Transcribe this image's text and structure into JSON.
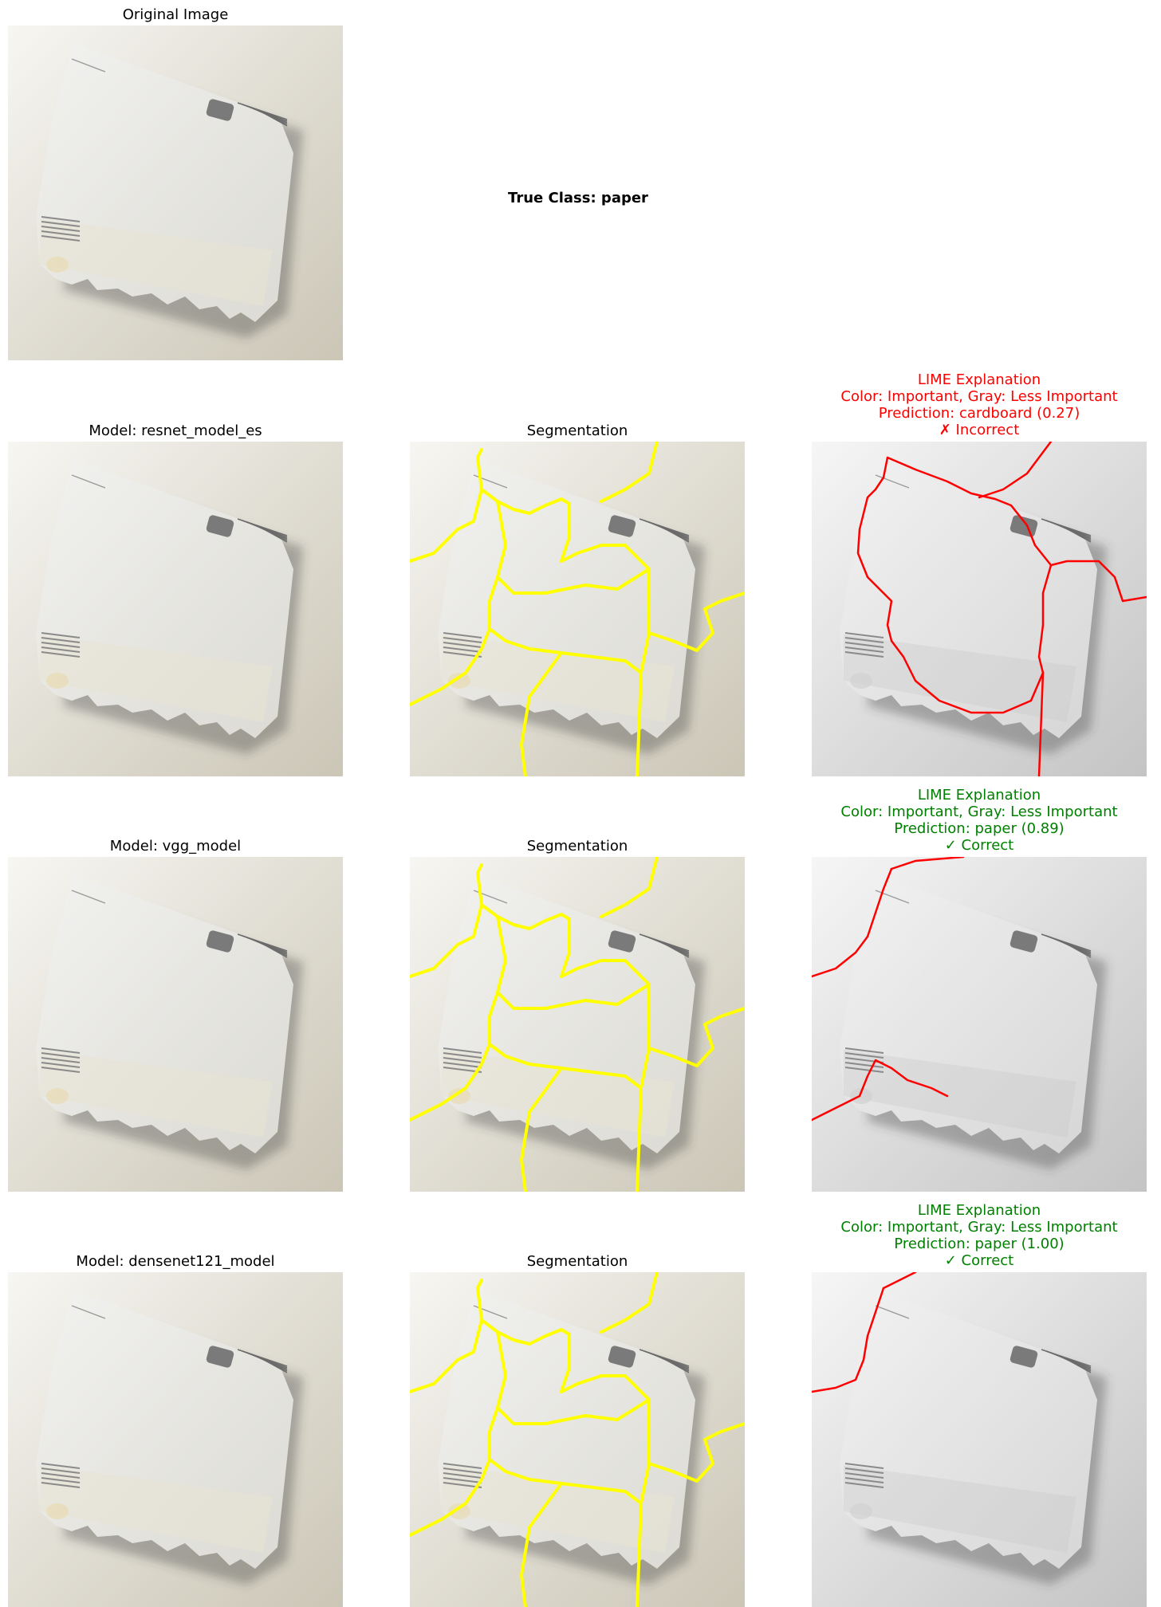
{
  "figure": {
    "original_title": "Original Image",
    "true_class_label": "True Class: paper",
    "segmentation_title": "Segmentation",
    "lime_header": "LIME Explanation",
    "lime_legend": "Color: Important, Gray: Less Important"
  },
  "rows": [
    {
      "model_title": "Model: resnet_model_es",
      "prediction": "Prediction: cardboard (0.27)",
      "verdict": "✗ Incorrect",
      "verdict_color": "#ff0000"
    },
    {
      "model_title": "Model: vgg_model",
      "prediction": "Prediction: paper (0.89)",
      "verdict": "✓ Correct",
      "verdict_color": "#008000"
    },
    {
      "model_title": "Model: densenet121_model",
      "prediction": "Prediction: paper (1.00)",
      "verdict": "✓ Correct",
      "verdict_color": "#008000"
    }
  ],
  "colors": {
    "segmentation_boundary": "#ffff00",
    "lime_boundary": "#ff0000"
  }
}
